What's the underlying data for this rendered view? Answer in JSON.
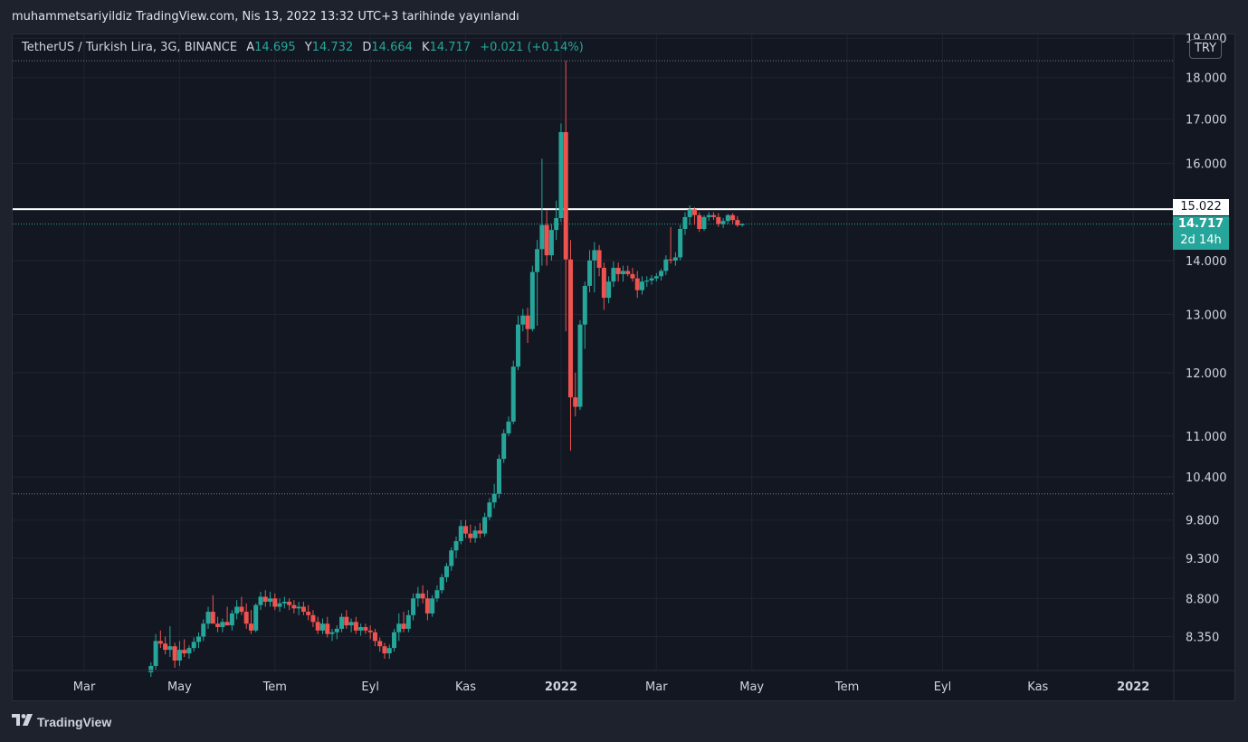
{
  "publication": "muhammetsariyildiz TradingView.com, Nis 13, 2022 13:32 UTC+3 tarihinde yayınlandı",
  "legend": {
    "symbol": "TetherUS / Turkish Lira, 3G, BINANCE",
    "open_label": "A",
    "open": "14.695",
    "high_label": "Y",
    "high": "14.732",
    "low_label": "D",
    "low": "14.664",
    "close_label": "K",
    "close": "14.717",
    "change": "+0.021 (+0.14%)"
  },
  "currency": "TRY",
  "horizontal_level": "15.022",
  "last_price": "14.717",
  "countdown": "2d 14h",
  "footer_brand": "TradingView",
  "colors": {
    "up": "#26a69a",
    "down": "#ef5350",
    "background": "#131722",
    "grid": "#1f2431",
    "level": "#ffffff"
  },
  "chart_data": {
    "type": "candlestick",
    "scale": "log",
    "y_ticks": [
      "8.350",
      "8.800",
      "9.300",
      "9.800",
      "10.400",
      "11.000",
      "12.000",
      "13.000",
      "14.000",
      "15.000",
      "16.000",
      "17.000",
      "18.000",
      "19.000"
    ],
    "x_ticks": [
      "Mar",
      "May",
      "Tem",
      "Eyl",
      "Kas",
      "2022",
      "Mar",
      "May",
      "Tem",
      "Eyl",
      "Kas",
      "2022"
    ],
    "x_tick_months": [
      2,
      4,
      6,
      8,
      10,
      12,
      14,
      16,
      18,
      20,
      22,
      24
    ],
    "ylim": [
      7.97,
      19.1
    ],
    "xlim": [
      0.5,
      24.85
    ],
    "hlines": [
      15.022,
      14.717,
      18.42,
      10.16
    ],
    "candles": [
      {
        "t": 3.4,
        "o": 7.95,
        "h": 8.06,
        "l": 7.9,
        "c": 8.02
      },
      {
        "t": 3.5,
        "o": 8.02,
        "h": 8.38,
        "l": 7.98,
        "c": 8.3
      },
      {
        "t": 3.6,
        "o": 8.3,
        "h": 8.42,
        "l": 8.22,
        "c": 8.27
      },
      {
        "t": 3.7,
        "o": 8.27,
        "h": 8.35,
        "l": 8.15,
        "c": 8.2
      },
      {
        "t": 3.8,
        "o": 8.2,
        "h": 8.47,
        "l": 8.12,
        "c": 8.24
      },
      {
        "t": 3.9,
        "o": 8.24,
        "h": 8.28,
        "l": 8.0,
        "c": 8.08
      },
      {
        "t": 4.0,
        "o": 8.08,
        "h": 8.3,
        "l": 8.02,
        "c": 8.2
      },
      {
        "t": 4.1,
        "o": 8.2,
        "h": 8.32,
        "l": 8.12,
        "c": 8.16
      },
      {
        "t": 4.2,
        "o": 8.16,
        "h": 8.25,
        "l": 8.1,
        "c": 8.22
      },
      {
        "t": 4.3,
        "o": 8.22,
        "h": 8.34,
        "l": 8.18,
        "c": 8.29
      },
      {
        "t": 4.4,
        "o": 8.29,
        "h": 8.4,
        "l": 8.22,
        "c": 8.35
      },
      {
        "t": 4.5,
        "o": 8.35,
        "h": 8.55,
        "l": 8.3,
        "c": 8.5
      },
      {
        "t": 4.6,
        "o": 8.5,
        "h": 8.7,
        "l": 8.44,
        "c": 8.64
      },
      {
        "t": 4.7,
        "o": 8.64,
        "h": 8.84,
        "l": 8.55,
        "c": 8.5
      },
      {
        "t": 4.8,
        "o": 8.5,
        "h": 8.58,
        "l": 8.4,
        "c": 8.46
      },
      {
        "t": 4.9,
        "o": 8.46,
        "h": 8.56,
        "l": 8.4,
        "c": 8.52
      },
      {
        "t": 5.0,
        "o": 8.52,
        "h": 8.7,
        "l": 8.48,
        "c": 8.48
      },
      {
        "t": 5.1,
        "o": 8.48,
        "h": 8.66,
        "l": 8.42,
        "c": 8.62
      },
      {
        "t": 5.2,
        "o": 8.62,
        "h": 8.78,
        "l": 8.55,
        "c": 8.7
      },
      {
        "t": 5.3,
        "o": 8.7,
        "h": 8.82,
        "l": 8.6,
        "c": 8.64
      },
      {
        "t": 5.4,
        "o": 8.64,
        "h": 8.74,
        "l": 8.44,
        "c": 8.5
      },
      {
        "t": 5.5,
        "o": 8.5,
        "h": 8.66,
        "l": 8.38,
        "c": 8.42
      },
      {
        "t": 5.6,
        "o": 8.42,
        "h": 8.74,
        "l": 8.4,
        "c": 8.72
      },
      {
        "t": 5.7,
        "o": 8.72,
        "h": 8.88,
        "l": 8.66,
        "c": 8.82
      },
      {
        "t": 5.8,
        "o": 8.82,
        "h": 8.9,
        "l": 8.7,
        "c": 8.76
      },
      {
        "t": 5.9,
        "o": 8.76,
        "h": 8.88,
        "l": 8.7,
        "c": 8.8
      },
      {
        "t": 6.0,
        "o": 8.8,
        "h": 8.86,
        "l": 8.66,
        "c": 8.7
      },
      {
        "t": 6.1,
        "o": 8.7,
        "h": 8.8,
        "l": 8.64,
        "c": 8.74
      },
      {
        "t": 6.2,
        "o": 8.74,
        "h": 8.82,
        "l": 8.68,
        "c": 8.76
      },
      {
        "t": 6.3,
        "o": 8.76,
        "h": 8.8,
        "l": 8.66,
        "c": 8.72
      },
      {
        "t": 6.4,
        "o": 8.72,
        "h": 8.78,
        "l": 8.62,
        "c": 8.68
      },
      {
        "t": 6.5,
        "o": 8.68,
        "h": 8.76,
        "l": 8.6,
        "c": 8.7
      },
      {
        "t": 6.6,
        "o": 8.7,
        "h": 8.76,
        "l": 8.6,
        "c": 8.64
      },
      {
        "t": 6.7,
        "o": 8.64,
        "h": 8.72,
        "l": 8.54,
        "c": 8.6
      },
      {
        "t": 6.8,
        "o": 8.6,
        "h": 8.66,
        "l": 8.46,
        "c": 8.52
      },
      {
        "t": 6.9,
        "o": 8.52,
        "h": 8.58,
        "l": 8.38,
        "c": 8.42
      },
      {
        "t": 7.0,
        "o": 8.42,
        "h": 8.56,
        "l": 8.38,
        "c": 8.5
      },
      {
        "t": 7.1,
        "o": 8.5,
        "h": 8.58,
        "l": 8.34,
        "c": 8.38
      },
      {
        "t": 7.2,
        "o": 8.38,
        "h": 8.44,
        "l": 8.3,
        "c": 8.4
      },
      {
        "t": 7.3,
        "o": 8.4,
        "h": 8.48,
        "l": 8.32,
        "c": 8.44
      },
      {
        "t": 7.4,
        "o": 8.44,
        "h": 8.62,
        "l": 8.4,
        "c": 8.58
      },
      {
        "t": 7.5,
        "o": 8.58,
        "h": 8.66,
        "l": 8.44,
        "c": 8.48
      },
      {
        "t": 7.6,
        "o": 8.48,
        "h": 8.56,
        "l": 8.4,
        "c": 8.52
      },
      {
        "t": 7.7,
        "o": 8.52,
        "h": 8.58,
        "l": 8.38,
        "c": 8.42
      },
      {
        "t": 7.8,
        "o": 8.42,
        "h": 8.5,
        "l": 8.36,
        "c": 8.46
      },
      {
        "t": 7.9,
        "o": 8.46,
        "h": 8.5,
        "l": 8.38,
        "c": 8.42
      },
      {
        "t": 8.0,
        "o": 8.42,
        "h": 8.48,
        "l": 8.32,
        "c": 8.4
      },
      {
        "t": 8.1,
        "o": 8.4,
        "h": 8.44,
        "l": 8.24,
        "c": 8.3
      },
      {
        "t": 8.2,
        "o": 8.3,
        "h": 8.34,
        "l": 8.18,
        "c": 8.24
      },
      {
        "t": 8.3,
        "o": 8.24,
        "h": 8.28,
        "l": 8.1,
        "c": 8.16
      },
      {
        "t": 8.4,
        "o": 8.16,
        "h": 8.26,
        "l": 8.1,
        "c": 8.22
      },
      {
        "t": 8.5,
        "o": 8.22,
        "h": 8.44,
        "l": 8.18,
        "c": 8.4
      },
      {
        "t": 8.6,
        "o": 8.4,
        "h": 8.62,
        "l": 8.3,
        "c": 8.5
      },
      {
        "t": 8.7,
        "o": 8.5,
        "h": 8.64,
        "l": 8.4,
        "c": 8.44
      },
      {
        "t": 8.8,
        "o": 8.44,
        "h": 8.66,
        "l": 8.4,
        "c": 8.6
      },
      {
        "t": 8.9,
        "o": 8.6,
        "h": 8.86,
        "l": 8.54,
        "c": 8.8
      },
      {
        "t": 9.0,
        "o": 8.8,
        "h": 8.94,
        "l": 8.7,
        "c": 8.86
      },
      {
        "t": 9.1,
        "o": 8.86,
        "h": 8.96,
        "l": 8.74,
        "c": 8.8
      },
      {
        "t": 9.2,
        "o": 8.8,
        "h": 8.9,
        "l": 8.54,
        "c": 8.62
      },
      {
        "t": 9.3,
        "o": 8.62,
        "h": 8.84,
        "l": 8.58,
        "c": 8.8
      },
      {
        "t": 9.4,
        "o": 8.8,
        "h": 8.96,
        "l": 8.76,
        "c": 8.9
      },
      {
        "t": 9.5,
        "o": 8.9,
        "h": 9.1,
        "l": 8.86,
        "c": 9.06
      },
      {
        "t": 9.6,
        "o": 9.06,
        "h": 9.24,
        "l": 9.0,
        "c": 9.2
      },
      {
        "t": 9.7,
        "o": 9.2,
        "h": 9.44,
        "l": 9.14,
        "c": 9.4
      },
      {
        "t": 9.8,
        "o": 9.4,
        "h": 9.58,
        "l": 9.3,
        "c": 9.52
      },
      {
        "t": 9.9,
        "o": 9.52,
        "h": 9.8,
        "l": 9.48,
        "c": 9.72
      },
      {
        "t": 10.0,
        "o": 9.72,
        "h": 9.8,
        "l": 9.56,
        "c": 9.62
      },
      {
        "t": 10.1,
        "o": 9.62,
        "h": 9.74,
        "l": 9.5,
        "c": 9.56
      },
      {
        "t": 10.2,
        "o": 9.56,
        "h": 9.72,
        "l": 9.5,
        "c": 9.66
      },
      {
        "t": 10.3,
        "o": 9.66,
        "h": 9.76,
        "l": 9.56,
        "c": 9.62
      },
      {
        "t": 10.4,
        "o": 9.62,
        "h": 9.9,
        "l": 9.58,
        "c": 9.84
      },
      {
        "t": 10.5,
        "o": 9.84,
        "h": 10.1,
        "l": 9.8,
        "c": 10.04
      },
      {
        "t": 10.6,
        "o": 10.04,
        "h": 10.3,
        "l": 9.96,
        "c": 10.16
      },
      {
        "t": 10.7,
        "o": 10.16,
        "h": 10.72,
        "l": 10.1,
        "c": 10.66
      },
      {
        "t": 10.8,
        "o": 10.66,
        "h": 11.1,
        "l": 10.6,
        "c": 11.04
      },
      {
        "t": 10.9,
        "o": 11.04,
        "h": 11.3,
        "l": 11.0,
        "c": 11.22
      },
      {
        "t": 11.0,
        "o": 11.22,
        "h": 12.2,
        "l": 11.18,
        "c": 12.1
      },
      {
        "t": 11.1,
        "o": 12.1,
        "h": 12.98,
        "l": 12.04,
        "c": 12.82
      },
      {
        "t": 11.2,
        "o": 12.82,
        "h": 13.1,
        "l": 12.7,
        "c": 12.98
      },
      {
        "t": 11.3,
        "o": 12.98,
        "h": 13.12,
        "l": 12.5,
        "c": 12.74
      },
      {
        "t": 11.4,
        "o": 12.74,
        "h": 13.9,
        "l": 12.7,
        "c": 13.78
      },
      {
        "t": 11.5,
        "o": 13.78,
        "h": 14.4,
        "l": 12.8,
        "c": 14.22
      },
      {
        "t": 11.6,
        "o": 14.22,
        "h": 16.1,
        "l": 13.9,
        "c": 14.7
      },
      {
        "t": 11.7,
        "o": 14.7,
        "h": 15.0,
        "l": 13.9,
        "c": 14.1
      },
      {
        "t": 11.8,
        "o": 14.1,
        "h": 14.72,
        "l": 14.0,
        "c": 14.6
      },
      {
        "t": 11.9,
        "o": 14.6,
        "h": 15.2,
        "l": 14.4,
        "c": 14.84
      },
      {
        "t": 12.0,
        "o": 14.84,
        "h": 16.9,
        "l": 14.76,
        "c": 16.7
      },
      {
        "t": 12.1,
        "o": 16.7,
        "h": 18.42,
        "l": 12.7,
        "c": 14.02
      },
      {
        "t": 12.2,
        "o": 14.02,
        "h": 14.4,
        "l": 10.78,
        "c": 11.6
      },
      {
        "t": 12.3,
        "o": 11.6,
        "h": 12.0,
        "l": 11.3,
        "c": 11.45
      },
      {
        "t": 12.4,
        "o": 11.45,
        "h": 12.9,
        "l": 11.4,
        "c": 12.82
      },
      {
        "t": 12.5,
        "o": 12.82,
        "h": 13.6,
        "l": 12.4,
        "c": 13.52
      },
      {
        "t": 12.6,
        "o": 13.52,
        "h": 14.2,
        "l": 13.4,
        "c": 14.0
      },
      {
        "t": 12.7,
        "o": 14.0,
        "h": 14.36,
        "l": 13.4,
        "c": 14.2
      },
      {
        "t": 12.8,
        "o": 14.2,
        "h": 14.3,
        "l": 13.7,
        "c": 13.86
      },
      {
        "t": 12.9,
        "o": 13.86,
        "h": 13.96,
        "l": 13.08,
        "c": 13.3
      },
      {
        "t": 13.0,
        "o": 13.3,
        "h": 13.7,
        "l": 13.2,
        "c": 13.6
      },
      {
        "t": 13.1,
        "o": 13.6,
        "h": 13.98,
        "l": 13.5,
        "c": 13.86
      },
      {
        "t": 13.2,
        "o": 13.86,
        "h": 13.96,
        "l": 13.6,
        "c": 13.74
      },
      {
        "t": 13.3,
        "o": 13.74,
        "h": 13.9,
        "l": 13.6,
        "c": 13.8
      },
      {
        "t": 13.4,
        "o": 13.8,
        "h": 13.9,
        "l": 13.7,
        "c": 13.74
      },
      {
        "t": 13.5,
        "o": 13.74,
        "h": 13.86,
        "l": 13.6,
        "c": 13.66
      },
      {
        "t": 13.6,
        "o": 13.66,
        "h": 13.8,
        "l": 13.3,
        "c": 13.44
      },
      {
        "t": 13.7,
        "o": 13.44,
        "h": 13.7,
        "l": 13.36,
        "c": 13.6
      },
      {
        "t": 13.8,
        "o": 13.6,
        "h": 13.7,
        "l": 13.5,
        "c": 13.62
      },
      {
        "t": 13.9,
        "o": 13.62,
        "h": 13.72,
        "l": 13.54,
        "c": 13.66
      },
      {
        "t": 14.0,
        "o": 13.66,
        "h": 13.76,
        "l": 13.6,
        "c": 13.7
      },
      {
        "t": 14.1,
        "o": 13.7,
        "h": 13.84,
        "l": 13.62,
        "c": 13.8
      },
      {
        "t": 14.2,
        "o": 13.8,
        "h": 14.1,
        "l": 13.72,
        "c": 14.02
      },
      {
        "t": 14.3,
        "o": 14.02,
        "h": 14.66,
        "l": 13.94,
        "c": 14.0
      },
      {
        "t": 14.4,
        "o": 14.0,
        "h": 14.16,
        "l": 13.9,
        "c": 14.06
      },
      {
        "t": 14.5,
        "o": 14.06,
        "h": 14.7,
        "l": 14.0,
        "c": 14.62
      },
      {
        "t": 14.6,
        "o": 14.62,
        "h": 14.96,
        "l": 14.5,
        "c": 14.86
      },
      {
        "t": 14.7,
        "o": 14.86,
        "h": 15.1,
        "l": 14.7,
        "c": 15.02
      },
      {
        "t": 14.8,
        "o": 15.02,
        "h": 15.06,
        "l": 14.7,
        "c": 14.9
      },
      {
        "t": 14.9,
        "o": 14.9,
        "h": 14.96,
        "l": 14.56,
        "c": 14.62
      },
      {
        "t": 15.0,
        "o": 14.62,
        "h": 14.9,
        "l": 14.58,
        "c": 14.86
      },
      {
        "t": 15.1,
        "o": 14.86,
        "h": 14.96,
        "l": 14.78,
        "c": 14.9
      },
      {
        "t": 15.2,
        "o": 14.9,
        "h": 14.96,
        "l": 14.8,
        "c": 14.86
      },
      {
        "t": 15.3,
        "o": 14.86,
        "h": 14.94,
        "l": 14.66,
        "c": 14.72
      },
      {
        "t": 15.4,
        "o": 14.72,
        "h": 14.84,
        "l": 14.64,
        "c": 14.78
      },
      {
        "t": 15.5,
        "o": 14.78,
        "h": 14.92,
        "l": 14.72,
        "c": 14.9
      },
      {
        "t": 15.6,
        "o": 14.9,
        "h": 14.94,
        "l": 14.72,
        "c": 14.8
      },
      {
        "t": 15.7,
        "o": 14.8,
        "h": 14.88,
        "l": 14.66,
        "c": 14.695
      },
      {
        "t": 15.8,
        "o": 14.695,
        "h": 14.732,
        "l": 14.664,
        "c": 14.717
      }
    ]
  }
}
